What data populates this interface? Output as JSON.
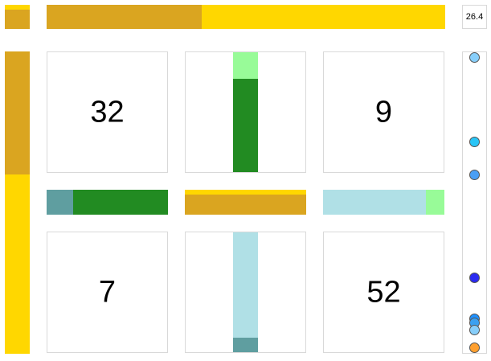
{
  "colors": {
    "gold": "#DAA520",
    "yellow": "#FFD700",
    "forest_green": "#228B22",
    "pale_green": "#98FB98",
    "cadet_blue": "#5F9EA0",
    "powder_blue": "#B0E0E6",
    "card_border": "#D9D9D9"
  },
  "score": {
    "value": "26.4"
  },
  "top_bar": {
    "segments": [
      {
        "color": "gold",
        "fraction": 0.389
      },
      {
        "color": "yellow",
        "fraction": 0.611
      }
    ]
  },
  "corner_bar": {
    "segments": [
      {
        "color": "yellow",
        "fraction": 0.2
      },
      {
        "color": "gold",
        "fraction": 0.8
      }
    ]
  },
  "left_bar": {
    "segments": [
      {
        "color": "gold",
        "fraction": 0.408
      },
      {
        "color": "yellow",
        "fraction": 0.592
      }
    ]
  },
  "cards": {
    "top_left": {
      "value": "32"
    },
    "top_right": {
      "value": "9"
    },
    "bottom_left": {
      "value": "7"
    },
    "bottom_right": {
      "value": "52"
    }
  },
  "top_middle_bar": {
    "segments": [
      {
        "color": "pale_green",
        "fraction": 0.22
      },
      {
        "color": "forest_green",
        "fraction": 0.78
      }
    ]
  },
  "bottom_middle_bar": {
    "segments": [
      {
        "color": "powder_blue",
        "fraction": 0.88
      },
      {
        "color": "cadet_blue",
        "fraction": 0.12
      }
    ]
  },
  "mid_left_bar": {
    "segments": [
      {
        "color": "cadet_blue",
        "fraction": 0.22
      },
      {
        "color": "forest_green",
        "fraction": 0.78
      }
    ]
  },
  "mid_center_bar": {
    "segments": [
      {
        "color": "yellow",
        "fraction": 0.2
      },
      {
        "color": "gold",
        "fraction": 0.8
      }
    ]
  },
  "mid_right_bar": {
    "segments": [
      {
        "color": "powder_blue",
        "fraction": 0.85
      },
      {
        "color": "pale_green",
        "fraction": 0.15
      }
    ]
  },
  "track_markers": [
    {
      "color": "#87CEFA",
      "level": 0.0
    },
    {
      "color": "#29C5F6",
      "level": 0.29
    },
    {
      "color": "#4A9FF5",
      "level": 0.405
    },
    {
      "color": "#2A2AF0",
      "level": 0.76
    },
    {
      "color": "#1E90FF",
      "level": 0.9
    },
    {
      "color": "#3AA0F0",
      "level": 0.915
    },
    {
      "color": "#87CEFA",
      "level": 0.94
    },
    {
      "color": "#FFA030",
      "level": 1.0
    }
  ]
}
